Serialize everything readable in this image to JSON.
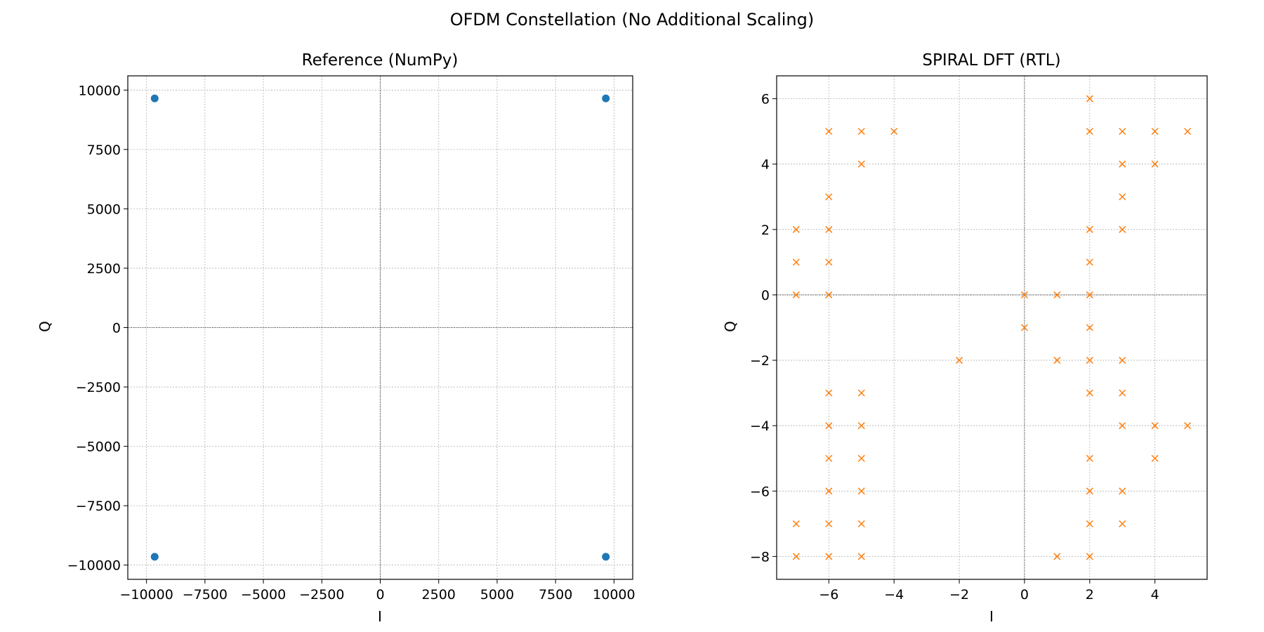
{
  "figure_title": "OFDM Constellation (No Additional Scaling)",
  "chart_data": [
    {
      "type": "scatter",
      "title": "Reference (NumPy)",
      "xlabel": "I",
      "ylabel": "Q",
      "xlim": [
        -10800,
        10800
      ],
      "ylim": [
        -10600,
        10600
      ],
      "xticks": [
        -10000,
        -7500,
        -5000,
        -2500,
        0,
        2500,
        5000,
        7500,
        10000
      ],
      "yticks": [
        -10000,
        -7500,
        -5000,
        -2500,
        0,
        2500,
        5000,
        7500,
        10000
      ],
      "xtick_labels": [
        "−10000",
        "−7500",
        "−5000",
        "−2500",
        "0",
        "2500",
        "5000",
        "7500",
        "10000"
      ],
      "ytick_labels": [
        "−10000",
        "−7500",
        "−5000",
        "−2500",
        "0",
        "2500",
        "5000",
        "7500",
        "10000"
      ],
      "grid": true,
      "marker": "circle",
      "color": "#1f77b4",
      "points": [
        [
          -9650,
          9650
        ],
        [
          9650,
          9650
        ],
        [
          -9650,
          -9650
        ],
        [
          9650,
          -9650
        ]
      ]
    },
    {
      "type": "scatter",
      "title": "SPIRAL DFT (RTL)",
      "xlabel": "I",
      "ylabel": "Q",
      "xlim": [
        -7.6,
        5.6
      ],
      "ylim": [
        -8.7,
        6.7
      ],
      "xticks": [
        -6,
        -4,
        -2,
        0,
        2,
        4
      ],
      "yticks": [
        -8,
        -6,
        -4,
        -2,
        0,
        2,
        4,
        6
      ],
      "xtick_labels": [
        "−6",
        "−4",
        "−2",
        "0",
        "2",
        "4"
      ],
      "ytick_labels": [
        "−8",
        "−6",
        "−4",
        "−2",
        "0",
        "2",
        "4",
        "6"
      ],
      "grid": true,
      "marker": "x",
      "color": "#ff7f0e",
      "points": [
        [
          2,
          6
        ],
        [
          -6,
          5
        ],
        [
          -5,
          5
        ],
        [
          -4,
          5
        ],
        [
          2,
          5
        ],
        [
          3,
          5
        ],
        [
          4,
          5
        ],
        [
          5,
          5
        ],
        [
          -5,
          4
        ],
        [
          3,
          4
        ],
        [
          4,
          4
        ],
        [
          -6,
          3
        ],
        [
          3,
          3
        ],
        [
          -7,
          2
        ],
        [
          -6,
          2
        ],
        [
          2,
          2
        ],
        [
          3,
          2
        ],
        [
          -7,
          1
        ],
        [
          -6,
          1
        ],
        [
          2,
          1
        ],
        [
          -7,
          0
        ],
        [
          -6,
          0
        ],
        [
          0,
          0
        ],
        [
          1,
          0
        ],
        [
          2,
          0
        ],
        [
          0,
          -1
        ],
        [
          2,
          -1
        ],
        [
          -2,
          -2
        ],
        [
          1,
          -2
        ],
        [
          2,
          -2
        ],
        [
          3,
          -2
        ],
        [
          -6,
          -3
        ],
        [
          -5,
          -3
        ],
        [
          2,
          -3
        ],
        [
          3,
          -3
        ],
        [
          -6,
          -4
        ],
        [
          -5,
          -4
        ],
        [
          3,
          -4
        ],
        [
          4,
          -4
        ],
        [
          5,
          -4
        ],
        [
          -6,
          -5
        ],
        [
          -5,
          -5
        ],
        [
          2,
          -5
        ],
        [
          4,
          -5
        ],
        [
          -6,
          -6
        ],
        [
          -5,
          -6
        ],
        [
          2,
          -6
        ],
        [
          3,
          -6
        ],
        [
          -7,
          -7
        ],
        [
          -6,
          -7
        ],
        [
          -5,
          -7
        ],
        [
          2,
          -7
        ],
        [
          3,
          -7
        ],
        [
          -7,
          -8
        ],
        [
          -6,
          -8
        ],
        [
          -5,
          -8
        ],
        [
          1,
          -8
        ],
        [
          2,
          -8
        ]
      ]
    }
  ]
}
